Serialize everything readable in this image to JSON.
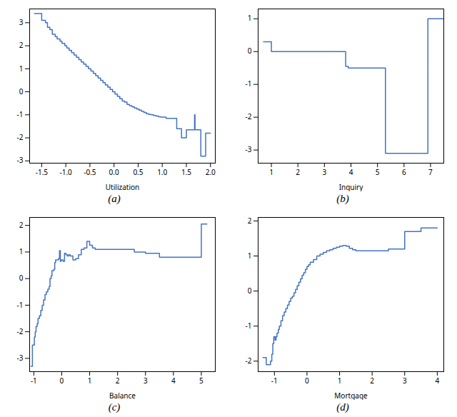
{
  "chart_data": [
    {
      "type": "step",
      "caption": "(a)",
      "xlabel": "Utilization",
      "color": "#4472c4",
      "grid": false,
      "xlim": [
        -1.75,
        2.1
      ],
      "ylim": [
        -3.1,
        3.6
      ],
      "xticks": [
        -1.5,
        {
          "value": -1,
          "label": "-1.0"
        },
        -0.5,
        {
          "value": 0,
          "label": "0.0"
        },
        0.5,
        {
          "value": 1,
          "label": "1.0"
        },
        1.5,
        {
          "value": 2,
          "label": "2.0"
        }
      ],
      "yticks": [
        -3,
        -2,
        -1,
        0,
        1,
        2,
        3
      ],
      "x": [
        -1.65,
        -1.55,
        -1.5,
        -1.42,
        -1.38,
        -1.33,
        -1.28,
        -1.22,
        -1.18,
        -1.12,
        -1.08,
        -1.02,
        -0.98,
        -0.93,
        -0.88,
        -0.83,
        -0.78,
        -0.73,
        -0.68,
        -0.63,
        -0.58,
        -0.53,
        -0.48,
        -0.43,
        -0.38,
        -0.33,
        -0.28,
        -0.23,
        -0.18,
        -0.13,
        -0.08,
        -0.03,
        0.02,
        0.07,
        0.12,
        0.17,
        0.22,
        0.27,
        0.32,
        0.37,
        0.42,
        0.47,
        0.52,
        0.57,
        0.62,
        0.67,
        0.72,
        0.77,
        0.82,
        0.87,
        0.92,
        0.97,
        1.02,
        1.08,
        1.15,
        1.22,
        1.3,
        1.4,
        1.5,
        1.6,
        1.62,
        1.65,
        1.67,
        1.68,
        1.7,
        1.72,
        1.75,
        1.8,
        1.9,
        2.0
      ],
      "values": [
        3.4,
        3.4,
        3.1,
        3.0,
        2.8,
        2.7,
        2.5,
        2.4,
        2.3,
        2.2,
        2.1,
        2.0,
        1.9,
        1.8,
        1.7,
        1.6,
        1.5,
        1.4,
        1.3,
        1.2,
        1.1,
        1.0,
        0.9,
        0.8,
        0.7,
        0.6,
        0.5,
        0.4,
        0.3,
        0.2,
        0.1,
        0.0,
        -0.1,
        -0.2,
        -0.3,
        -0.4,
        -0.45,
        -0.55,
        -0.6,
        -0.65,
        -0.7,
        -0.75,
        -0.8,
        -0.85,
        -0.9,
        -0.95,
        -0.98,
        -1.0,
        -1.03,
        -1.05,
        -1.08,
        -1.1,
        -1.1,
        -1.15,
        -1.15,
        -1.15,
        -1.6,
        -2.0,
        -1.65,
        -1.65,
        -1.65,
        -1.65,
        -1.0,
        -1.65,
        -1.65,
        -1.65,
        -1.65,
        -2.8,
        -1.8,
        -1.8
      ]
    },
    {
      "type": "step",
      "caption": "(b)",
      "xlabel": "Inquiry",
      "color": "#4472c4",
      "grid": false,
      "xlim": [
        0.5,
        7.5
      ],
      "ylim": [
        -3.4,
        1.3
      ],
      "xticks": [
        1,
        2,
        3,
        4,
        5,
        6,
        7
      ],
      "yticks": [
        -3,
        -2,
        -1,
        0,
        1
      ],
      "x": [
        0.7,
        1.0,
        1.0,
        3.8,
        3.8,
        3.9,
        3.9,
        5.3,
        5.3,
        6.9,
        6.9,
        7.5
      ],
      "values": [
        0.3,
        0.3,
        0.0,
        0.0,
        -0.45,
        -0.45,
        -0.5,
        -0.5,
        -3.1,
        -3.1,
        1.0,
        1.0
      ]
    },
    {
      "type": "step",
      "caption": "(c)",
      "xlabel": "Balance",
      "color": "#4472c4",
      "grid": false,
      "xlim": [
        -1.15,
        5.5
      ],
      "ylim": [
        -3.5,
        2.3
      ],
      "xticks": [
        -1,
        0,
        1,
        2,
        3,
        4,
        5
      ],
      "yticks": [
        -3,
        -2,
        -1,
        0,
        1,
        2
      ],
      "x": [
        -1.1,
        -1.05,
        -1.02,
        -0.98,
        -0.95,
        -0.92,
        -0.88,
        -0.85,
        -0.8,
        -0.75,
        -0.7,
        -0.65,
        -0.6,
        -0.55,
        -0.5,
        -0.45,
        -0.42,
        -0.38,
        -0.35,
        -0.32,
        -0.28,
        -0.25,
        -0.22,
        -0.18,
        -0.15,
        -0.12,
        -0.08,
        -0.05,
        -0.02,
        0.02,
        0.05,
        0.1,
        0.15,
        0.2,
        0.25,
        0.3,
        0.35,
        0.4,
        0.5,
        0.6,
        0.7,
        0.8,
        0.9,
        1.0,
        1.1,
        1.2,
        1.4,
        1.6,
        1.8,
        2.0,
        2.2,
        2.4,
        2.6,
        2.8,
        3.0,
        3.5,
        4.0,
        4.5,
        5.0,
        5.2
      ],
      "values": [
        -3.3,
        -2.5,
        -2.5,
        -2.2,
        -2.0,
        -1.8,
        -1.7,
        -1.5,
        -1.4,
        -1.2,
        -1.0,
        -0.8,
        -0.6,
        -0.5,
        -0.4,
        -0.3,
        0.0,
        0.1,
        0.3,
        0.3,
        0.35,
        0.6,
        0.7,
        0.7,
        0.7,
        0.75,
        1.05,
        0.65,
        0.7,
        0.7,
        0.65,
        0.95,
        0.9,
        0.85,
        0.9,
        0.85,
        0.85,
        0.7,
        0.75,
        0.9,
        1.1,
        1.15,
        1.4,
        1.25,
        1.15,
        1.1,
        1.1,
        1.1,
        1.1,
        1.1,
        1.1,
        1.1,
        1.0,
        1.0,
        0.95,
        0.8,
        0.8,
        0.8,
        2.05,
        2.05
      ]
    },
    {
      "type": "step",
      "caption": "(d)",
      "xlabel": "Mortgage",
      "color": "#4472c4",
      "grid": false,
      "xlim": [
        -1.5,
        4.2
      ],
      "ylim": [
        -2.3,
        2.1
      ],
      "xticks": [
        -1,
        0,
        1,
        2,
        3,
        4
      ],
      "yticks": [
        -2,
        -1,
        0,
        1,
        2
      ],
      "x": [
        -1.35,
        -1.3,
        -1.25,
        -1.2,
        -1.15,
        -1.12,
        -1.08,
        -1.05,
        -1.02,
        -0.98,
        -0.95,
        -0.92,
        -0.88,
        -0.85,
        -0.8,
        -0.75,
        -0.7,
        -0.65,
        -0.6,
        -0.55,
        -0.5,
        -0.45,
        -0.4,
        -0.35,
        -0.3,
        -0.25,
        -0.2,
        -0.15,
        -0.1,
        -0.05,
        0.0,
        0.05,
        0.1,
        0.2,
        0.3,
        0.4,
        0.5,
        0.6,
        0.7,
        0.8,
        0.9,
        1.0,
        1.1,
        1.2,
        1.3,
        1.4,
        1.5,
        1.6,
        1.8,
        2.0,
        2.5,
        3.0,
        3.5,
        3.8,
        4.0
      ],
      "values": [
        -1.9,
        -1.9,
        -2.1,
        -2.1,
        -2.1,
        -2.0,
        -1.8,
        -1.5,
        -1.3,
        -1.4,
        -1.3,
        -1.2,
        -1.1,
        -1.0,
        -0.85,
        -0.7,
        -0.6,
        -0.5,
        -0.4,
        -0.3,
        -0.2,
        -0.15,
        -0.05,
        0.05,
        0.15,
        0.25,
        0.35,
        0.45,
        0.52,
        0.62,
        0.7,
        0.75,
        0.82,
        0.9,
        1.0,
        1.05,
        1.1,
        1.15,
        1.18,
        1.22,
        1.25,
        1.28,
        1.3,
        1.28,
        1.22,
        1.18,
        1.15,
        1.15,
        1.15,
        1.15,
        1.2,
        1.7,
        1.8,
        1.8,
        1.8
      ]
    }
  ]
}
